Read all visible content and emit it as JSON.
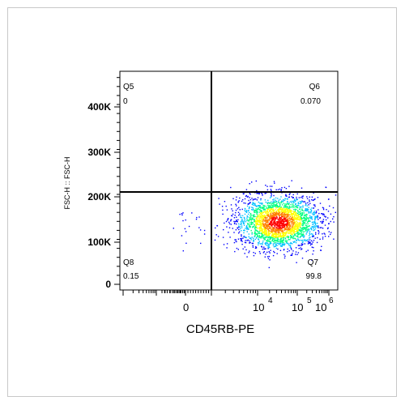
{
  "chart_data": {
    "type": "scatter",
    "subtype": "flow-cytometry-density-dot-plot",
    "title": "",
    "xlabel": "CD45RB-PE",
    "ylabel": "FSC-H :: FSC-H",
    "x_scale": "biexponential",
    "x_ticks": [
      {
        "base": "0",
        "exp": ""
      },
      {
        "base": "10",
        "exp": "4"
      },
      {
        "base": "10",
        "exp": "5"
      },
      {
        "base": "10",
        "exp": "6"
      }
    ],
    "y_ticks": [
      "0",
      "100K",
      "200K",
      "300K",
      "400K"
    ],
    "y_tick_values": [
      0,
      100000,
      200000,
      300000,
      400000
    ],
    "ylim": [
      0,
      460000
    ],
    "gate": {
      "x_threshold_label": "≈10^3",
      "y_threshold": 212000
    },
    "quadrants": [
      {
        "name": "Q5",
        "value": "0",
        "position": "top-left"
      },
      {
        "name": "Q6",
        "value": "0.070",
        "position": "top-right"
      },
      {
        "name": "Q7",
        "value": "99.8",
        "position": "bottom-right"
      },
      {
        "name": "Q8",
        "value": "0.15",
        "position": "bottom-left"
      }
    ],
    "population": {
      "center_x_label": "≈3×10^4",
      "center_y": 135000,
      "spread_y": [
        80000,
        230000
      ],
      "color_scale": [
        "#0000ff",
        "#00c0ff",
        "#00ff80",
        "#ffff00",
        "#ff8000",
        "#ff0000"
      ]
    },
    "grid": false,
    "legend": "none"
  }
}
